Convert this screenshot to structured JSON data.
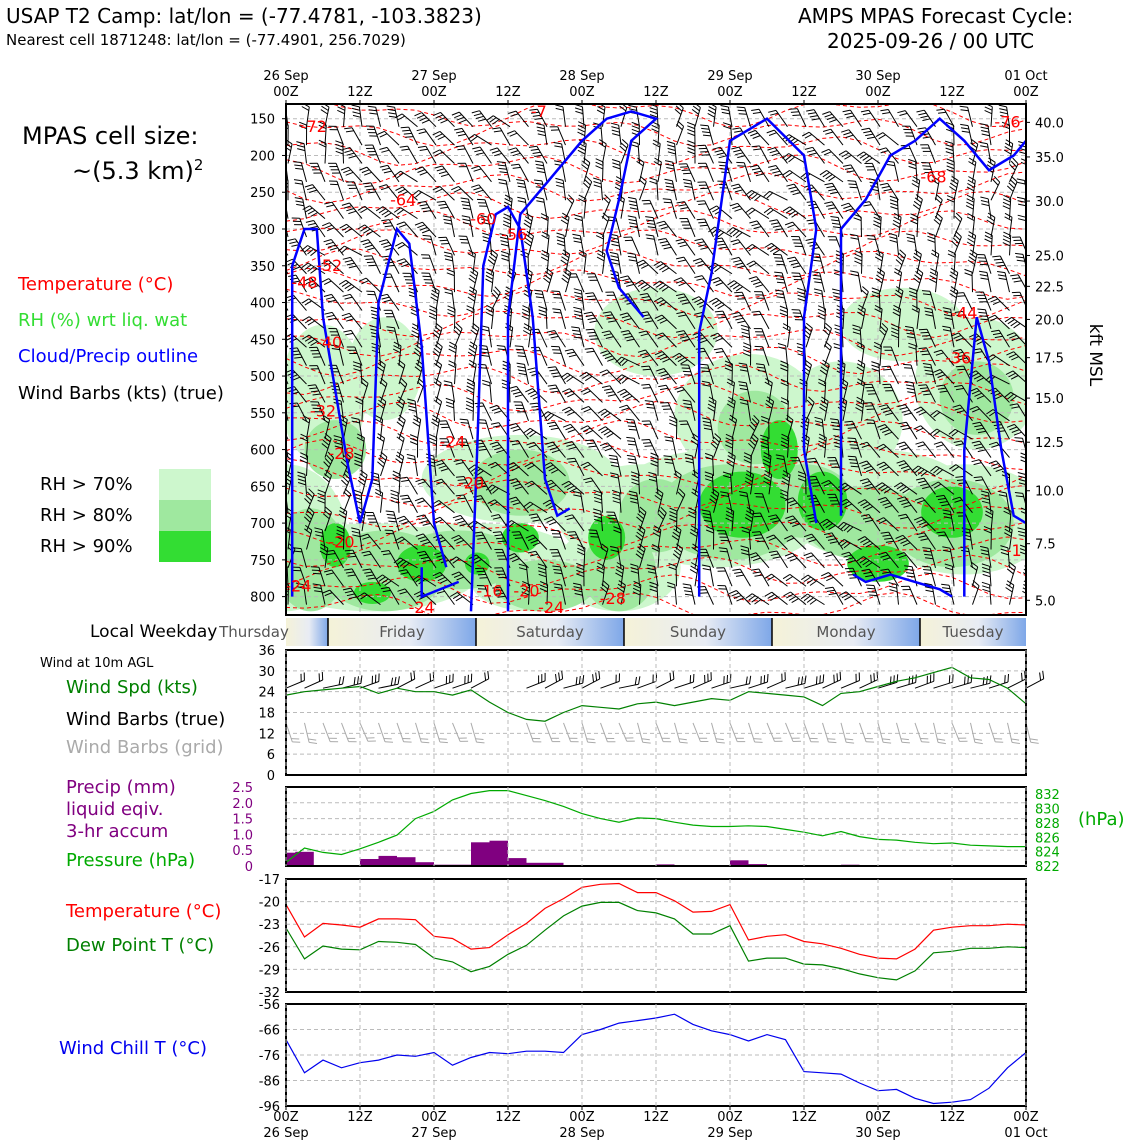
{
  "header": {
    "title": "USAP T2 Camp: lat/lon = (-77.4781, -103.3823)",
    "subtitle": "Nearest cell 1871248: lat/lon = (-77.4901, 256.7029)",
    "model": "AMPS MPAS Forecast Cycle:",
    "cycle": "2025-09-26 / 00 UTC"
  },
  "legend": {
    "cell_size_label": "MPAS cell size:",
    "cell_size_value": "~(5.3 km)",
    "cell_size_exp": "2",
    "temperature": "Temperature (°C)",
    "rh": "RH (%) wrt liq. wat",
    "cloud": "Cloud/Precip outline",
    "wind": "Wind Barbs (kts) (true)",
    "rh70": "RH > 70%",
    "rh80": "RH > 80%",
    "rh90": "RH > 90%",
    "local_weekday": "Local Weekday",
    "wind10m": "Wind at 10m AGL",
    "wind_spd": "Wind Spd (kts)",
    "barbs_true": "Wind Barbs (true)",
    "barbs_grid": "Wind Barbs (grid)",
    "precip_lines": [
      "Precip (mm)",
      "liquid eqiv.",
      "3-hr accum"
    ],
    "pressure": "Pressure (hPa)",
    "hpa": "(hPa)",
    "temp2": "Temperature (°C)",
    "dewpoint": "Dew Point T (°C)",
    "windchill": "Wind Chill T (°C)"
  },
  "colors": {
    "temp": "#ff0000",
    "rh_green": "#22cc22",
    "cloud": "#0000ff",
    "precip": "#800080",
    "pressure": "#00aa00",
    "dew": "#008000",
    "windchill": "#0000ee",
    "rh70": "#cdf7cd",
    "rh80": "#9fe89f",
    "rh90": "#33dd33"
  },
  "chart_data": [
    {
      "type": "contour",
      "name": "cross-section",
      "x_top_labels": [
        [
          "26 Sep",
          "00Z"
        ],
        [
          "",
          "12Z"
        ],
        [
          "27 Sep",
          "00Z"
        ],
        [
          "",
          "12Z"
        ],
        [
          "28 Sep",
          "00Z"
        ],
        [
          "",
          "12Z"
        ],
        [
          "29 Sep",
          "00Z"
        ],
        [
          "",
          "12Z"
        ],
        [
          "30 Sep",
          "00Z"
        ],
        [
          "",
          "12Z"
        ],
        [
          "01 Oct",
          "00Z"
        ]
      ],
      "x_hours": [
        0,
        12,
        24,
        36,
        48,
        60,
        72,
        84,
        96,
        108,
        120
      ],
      "pressure_ticks": [
        150,
        200,
        250,
        300,
        350,
        400,
        450,
        500,
        550,
        600,
        650,
        700,
        750,
        800
      ],
      "plim": [
        825,
        130
      ],
      "kft_ticks": [
        {
          "label": "40.0",
          "p": 155
        },
        {
          "label": "35.0",
          "p": 202
        },
        {
          "label": "30.0",
          "p": 262
        },
        {
          "label": "25.0",
          "p": 336
        },
        {
          "label": "22.5",
          "p": 378
        },
        {
          "label": "20.0",
          "p": 423
        },
        {
          "label": "17.5",
          "p": 475
        },
        {
          "label": "15.0",
          "p": 530
        },
        {
          "label": "12.5",
          "p": 590
        },
        {
          "label": "10.0",
          "p": 656
        },
        {
          "label": "7.5",
          "p": 728
        },
        {
          "label": "5.0",
          "p": 805
        }
      ],
      "right_label": "kft MSL",
      "temp_labels": [
        {
          "t": "-72",
          "h": 4.5,
          "p": 168
        },
        {
          "t": "-76",
          "h": 117,
          "p": 162
        },
        {
          "t": "-7",
          "h": 41,
          "p": 148
        },
        {
          "t": "-64",
          "h": 19,
          "p": 268
        },
        {
          "t": "-60",
          "h": 32,
          "p": 294
        },
        {
          "t": "-56",
          "h": 37,
          "p": 315
        },
        {
          "t": "-68",
          "h": 105,
          "p": 237
        },
        {
          "t": "-52",
          "h": 7,
          "p": 357
        },
        {
          "t": "-48",
          "h": 3,
          "p": 380
        },
        {
          "t": "-44",
          "h": 110,
          "p": 422
        },
        {
          "t": "-40",
          "h": 7,
          "p": 462
        },
        {
          "t": "-36",
          "h": 109,
          "p": 483
        },
        {
          "t": "-32",
          "h": 6,
          "p": 555
        },
        {
          "t": "-28",
          "h": 9,
          "p": 613
        },
        {
          "t": "-24",
          "h": 27,
          "p": 597
        },
        {
          "t": "-20",
          "h": 30,
          "p": 653
        },
        {
          "t": "-20",
          "h": 9,
          "p": 733
        },
        {
          "t": "-24",
          "h": 2,
          "p": 793
        },
        {
          "t": "-24",
          "h": 22,
          "p": 822
        },
        {
          "t": "-16",
          "h": 33,
          "p": 800
        },
        {
          "t": "-20",
          "h": 39,
          "p": 800
        },
        {
          "t": "-24",
          "h": 43,
          "p": 822
        },
        {
          "t": "-28",
          "h": 53,
          "p": 810
        },
        {
          "t": "-1",
          "h": 118,
          "p": 745
        }
      ]
    },
    {
      "type": "weekday_bar",
      "labels": [
        "Thursday",
        "Friday",
        "Saturday",
        "Sunday",
        "Monday",
        "Tuesday"
      ]
    },
    {
      "type": "line",
      "name": "wind-speed",
      "ylim": [
        0,
        36
      ],
      "yticks": [
        0,
        6,
        12,
        18,
        24,
        30,
        36
      ],
      "x": [
        0,
        3,
        6,
        9,
        12,
        15,
        18,
        21,
        24,
        27,
        30,
        33,
        36,
        39,
        42,
        45,
        48,
        51,
        54,
        57,
        60,
        63,
        66,
        69,
        72,
        75,
        78,
        81,
        84,
        87,
        90,
        93,
        96,
        99,
        102,
        105,
        108,
        111,
        114,
        117,
        120
      ],
      "series": [
        {
          "name": "Wind Spd (kts)",
          "values": [
            23,
            24,
            24.5,
            25,
            25.5,
            23.5,
            25,
            24,
            24,
            23,
            24.5,
            21,
            18,
            16,
            15.5,
            18,
            20,
            19.5,
            19,
            20.5,
            21,
            20,
            21,
            22,
            21.5,
            24,
            23.5,
            23,
            22.5,
            20,
            23.5,
            24,
            25.5,
            27,
            28,
            29.5,
            31,
            28,
            27.5,
            25,
            20.5
          ]
        }
      ]
    },
    {
      "type": "bar+line",
      "name": "precip-pressure",
      "precip_ylim": [
        0,
        2.5
      ],
      "precip_yticks": [
        0,
        0.5,
        1.0,
        1.5,
        2.0,
        2.5
      ],
      "pressure_ylim": [
        822,
        833
      ],
      "pressure_yticks": [
        822,
        824,
        826,
        828,
        830,
        832
      ],
      "precip_bins": [
        {
          "h": 1.5,
          "v": 0.42
        },
        {
          "h": 3,
          "v": 0.45
        },
        {
          "h": 13.5,
          "v": 0.22
        },
        {
          "h": 16.5,
          "v": 0.32
        },
        {
          "h": 19.5,
          "v": 0.28
        },
        {
          "h": 22.5,
          "v": 0.12
        },
        {
          "h": 25.5,
          "v": 0.04
        },
        {
          "h": 28.5,
          "v": 0.04
        },
        {
          "h": 31.5,
          "v": 0.75
        },
        {
          "h": 34.5,
          "v": 0.8
        },
        {
          "h": 37.5,
          "v": 0.25
        },
        {
          "h": 40.5,
          "v": 0.1
        },
        {
          "h": 43.5,
          "v": 0.1
        },
        {
          "h": 61.5,
          "v": 0.05
        },
        {
          "h": 73.5,
          "v": 0.18
        },
        {
          "h": 76.5,
          "v": 0.06
        },
        {
          "h": 91.5,
          "v": 0.04
        }
      ],
      "pressure_x": [
        0,
        3,
        6,
        9,
        12,
        15,
        18,
        21,
        24,
        27,
        30,
        33,
        36,
        39,
        42,
        45,
        48,
        51,
        54,
        57,
        60,
        63,
        66,
        69,
        72,
        75,
        78,
        81,
        84,
        87,
        90,
        93,
        96,
        99,
        102,
        105,
        108,
        111,
        114,
        117,
        120
      ],
      "pressure_values": [
        822.5,
        824.5,
        823.9,
        823.6,
        824.4,
        825.3,
        826.3,
        828.6,
        829.6,
        831.2,
        832.1,
        832.5,
        832.5,
        831.8,
        831.1,
        830.3,
        829.3,
        828.6,
        828.1,
        828.7,
        828.6,
        828.1,
        827.7,
        827.5,
        827.5,
        827.6,
        827.5,
        827.1,
        826.7,
        826.2,
        826.8,
        826.1,
        825.7,
        825.6,
        825.3,
        825.1,
        825.2,
        824.9,
        824.8,
        824.7,
        824.7
      ]
    },
    {
      "type": "line",
      "name": "temperature-dewpoint",
      "ylim": [
        -32,
        -17
      ],
      "yticks": [
        -17,
        -20,
        -23,
        -26,
        -29,
        -32
      ],
      "x": [
        0,
        3,
        6,
        9,
        12,
        15,
        18,
        21,
        24,
        27,
        30,
        33,
        36,
        39,
        42,
        45,
        48,
        51,
        54,
        57,
        60,
        63,
        66,
        69,
        72,
        75,
        78,
        81,
        84,
        87,
        90,
        93,
        96,
        99,
        102,
        105,
        108,
        111,
        114,
        117,
        120
      ],
      "series": [
        {
          "name": "Temperature (°C)",
          "values": [
            -20.4,
            -24.7,
            -22.9,
            -23.1,
            -23.4,
            -22.3,
            -22.3,
            -22.4,
            -24.6,
            -24.9,
            -26.3,
            -26.1,
            -24.4,
            -22.9,
            -20.9,
            -19.6,
            -18.1,
            -17.7,
            -17.6,
            -18.8,
            -18.8,
            -19.9,
            -21.4,
            -21.3,
            -20.4,
            -25.1,
            -24.6,
            -24.4,
            -25.3,
            -25.6,
            -26.2,
            -27.0,
            -27.5,
            -27.6,
            -26.3,
            -23.8,
            -23.4,
            -23.2,
            -23.2,
            -23.0,
            -23.1
          ]
        },
        {
          "name": "Dew Point T (°C)",
          "values": [
            -23.5,
            -27.6,
            -25.9,
            -26.3,
            -26.4,
            -25.3,
            -25.4,
            -25.7,
            -27.5,
            -28.0,
            -29.3,
            -28.6,
            -27.0,
            -25.8,
            -23.8,
            -21.9,
            -20.6,
            -20.1,
            -20.1,
            -21.2,
            -21.5,
            -22.3,
            -24.3,
            -24.3,
            -23.2,
            -27.9,
            -27.5,
            -27.5,
            -28.3,
            -28.4,
            -28.9,
            -29.6,
            -30.1,
            -30.4,
            -29.2,
            -26.8,
            -26.6,
            -26.2,
            -26.2,
            -26.0,
            -26.1
          ]
        }
      ]
    },
    {
      "type": "line",
      "name": "wind-chill",
      "ylim": [
        -96,
        -56
      ],
      "yticks": [
        -56,
        -66,
        -76,
        -86,
        -96
      ],
      "x": [
        0,
        3,
        6,
        9,
        12,
        15,
        18,
        21,
        24,
        27,
        30,
        33,
        36,
        39,
        42,
        45,
        48,
        51,
        54,
        57,
        60,
        63,
        66,
        69,
        72,
        75,
        78,
        81,
        84,
        87,
        90,
        93,
        96,
        99,
        102,
        105,
        108,
        111,
        114,
        117,
        120
      ],
      "series": [
        {
          "name": "Wind Chill T (°C)",
          "values": [
            -70,
            -83,
            -78,
            -81,
            -79,
            -78,
            -76,
            -76.5,
            -75,
            -80,
            -77,
            -75,
            -75.5,
            -74.5,
            -74.5,
            -75,
            -68,
            -66,
            -63.5,
            -62.5,
            -61.5,
            -60,
            -64,
            -66.5,
            -68,
            -70.5,
            -68,
            -70,
            -82.5,
            -83,
            -83.5,
            -87,
            -90,
            -89.5,
            -93,
            -95,
            -94.5,
            -93.5,
            -89,
            -81,
            -75
          ]
        }
      ]
    }
  ],
  "bottom_axis": [
    [
      "00Z",
      "26 Sep"
    ],
    [
      "12Z",
      ""
    ],
    [
      "00Z",
      "27 Sep"
    ],
    [
      "12Z",
      ""
    ],
    [
      "00Z",
      "28 Sep"
    ],
    [
      "12Z",
      ""
    ],
    [
      "00Z",
      "29 Sep"
    ],
    [
      "12Z",
      ""
    ],
    [
      "00Z",
      "30 Sep"
    ],
    [
      "12Z",
      ""
    ],
    [
      "00Z",
      "01 Oct"
    ]
  ]
}
